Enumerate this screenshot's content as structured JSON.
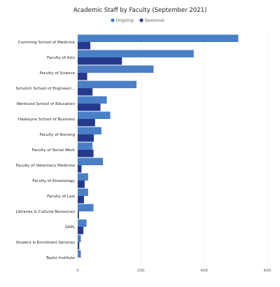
{
  "chart_data": {
    "type": "bar",
    "orientation": "horizontal",
    "title": "Academic Staff by Faculty (September 2021)",
    "legend_placement": "top-right",
    "categories": [
      "Cumming School of Medicine",
      "Faculty of Arts",
      "Faculty of Science",
      "Schulich School of Engineeri...",
      "Werklund School of Education",
      "Haskayne School of Business",
      "Faculty of Nursing",
      "Faculty of Social Work",
      "Faculty of Veterinary Medicine",
      "Faculty of Kinesiology",
      "Faculty of Law",
      "Libraries & Cultural Resources",
      "SAPL",
      "Student & Enrolment Services",
      "Taylor Institute"
    ],
    "series": [
      {
        "name": "Ongoing",
        "color": "#4a7fc6",
        "values": [
          508,
          367,
          240,
          186,
          92,
          103,
          75,
          47,
          80,
          33,
          33,
          50,
          28,
          10,
          10
        ]
      },
      {
        "name": "Sessional",
        "color": "#253a8e",
        "values": [
          40,
          140,
          30,
          47,
          72,
          55,
          51,
          50,
          12,
          22,
          20,
          4,
          18,
          5,
          0
        ]
      }
    ],
    "xlim": [
      0,
      600
    ],
    "xticks": [
      0,
      200,
      400,
      600
    ],
    "grid": true
  }
}
